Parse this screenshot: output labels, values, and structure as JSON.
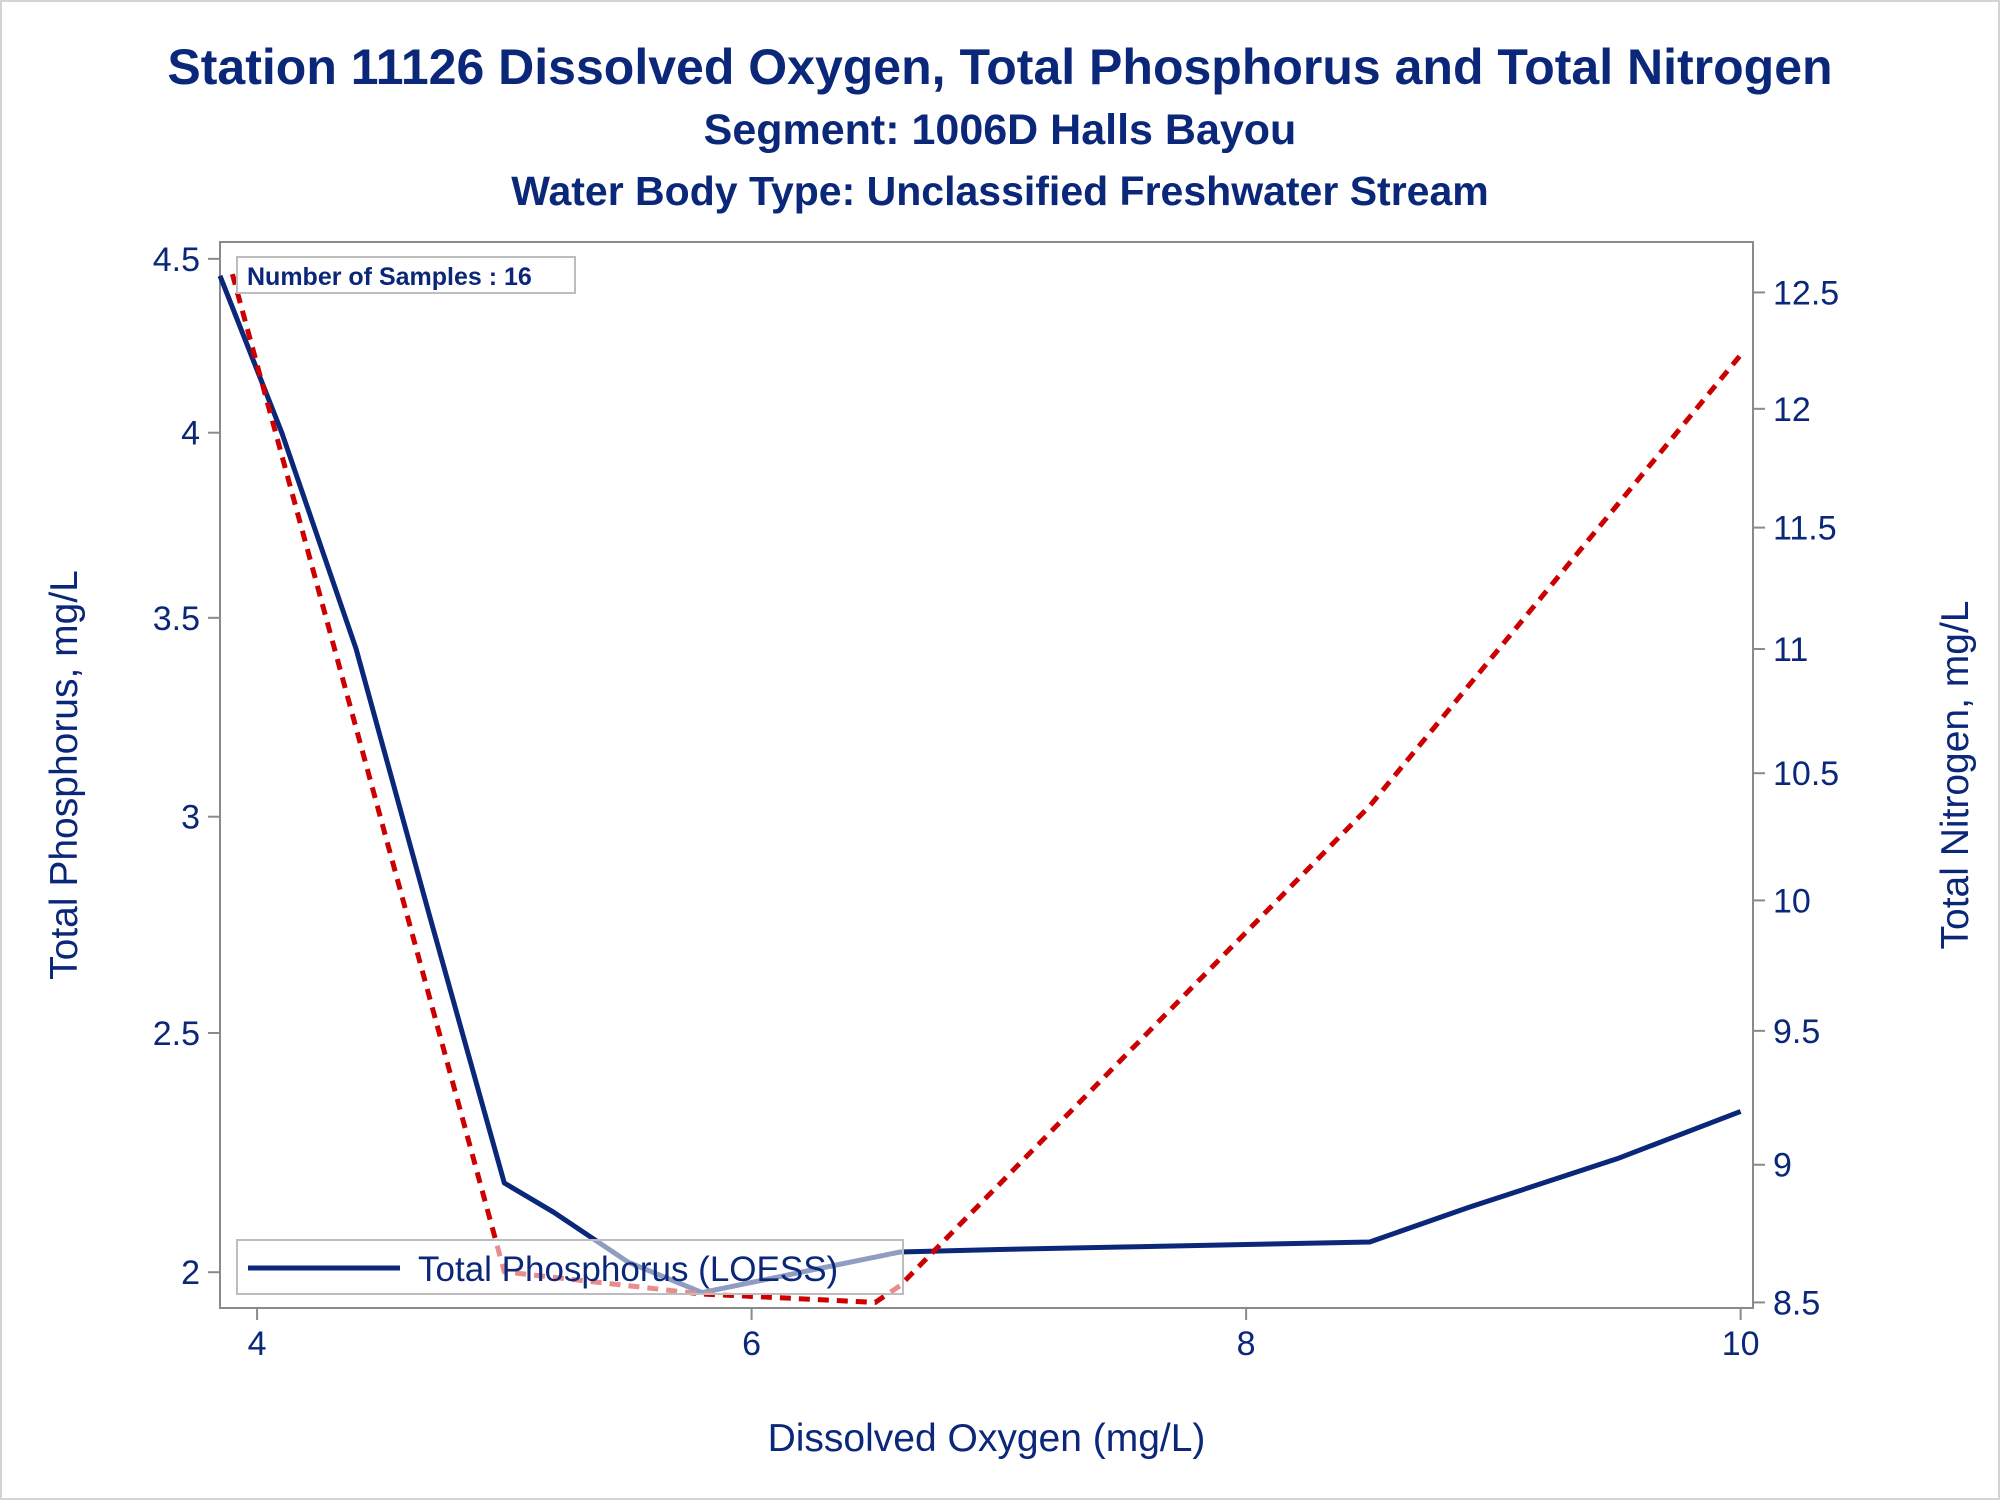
{
  "chart_data": {
    "type": "line",
    "title": "Station 11126  Dissolved Oxygen, Total Phosphorus and Total Nitrogen",
    "subtitle": "Segment: 1006D  Halls Bayou",
    "subtitle2": "Water Body Type: Unclassified Freshwater Stream",
    "xlabel": "Dissolved Oxygen (mg/L)",
    "ylabel_left": "Total Phosphorus, mg/L",
    "ylabel_right": "Total Nitrogen, mg/L",
    "xlim": [
      3.85,
      10.05
    ],
    "ylim_left": [
      1.93,
      4.55
    ],
    "ylim_right": [
      8.48,
      12.72
    ],
    "x_ticks": [
      4,
      6,
      8,
      10
    ],
    "y_left_ticks": [
      2,
      2.5,
      3,
      3.5,
      4,
      4.5
    ],
    "y_right_ticks": [
      8.5,
      9,
      9.5,
      10,
      10.5,
      11,
      11.5,
      12,
      12.5
    ],
    "y_left_scale": "sqrt",
    "y_right_scale": "sqrt",
    "annotation": "Number of Samples : 16",
    "legend": {
      "position": "bottom-left",
      "entries": [
        "Total Phosphorus (LOESS)"
      ]
    },
    "colors": {
      "phosphorus": "#0b2779",
      "nitrogen": "#cc0000",
      "text": "#0b2779",
      "axis": "#8a8a8a"
    },
    "series": [
      {
        "name": "Total Phosphorus (LOESS)",
        "axis": "left",
        "style": "solid",
        "x": [
          3.85,
          4.1,
          4.4,
          4.7,
          5.0,
          5.2,
          5.5,
          5.8,
          6.2,
          6.6,
          7.0,
          7.5,
          8.0,
          8.5,
          8.9,
          9.5,
          10.0
        ],
        "y": [
          4.45,
          4.0,
          3.42,
          2.76,
          2.18,
          2.12,
          2.02,
          1.96,
          2.0,
          2.04,
          2.045,
          2.05,
          2.055,
          2.06,
          2.13,
          2.23,
          2.33
        ]
      },
      {
        "name": "",
        "axis": "right",
        "style": "dashed",
        "x": [
          3.9,
          5.0,
          5.8,
          6.5,
          6.6,
          8.5,
          10.0
        ],
        "y": [
          12.58,
          8.61,
          8.53,
          8.5,
          8.56,
          10.37,
          12.23
        ]
      }
    ]
  }
}
